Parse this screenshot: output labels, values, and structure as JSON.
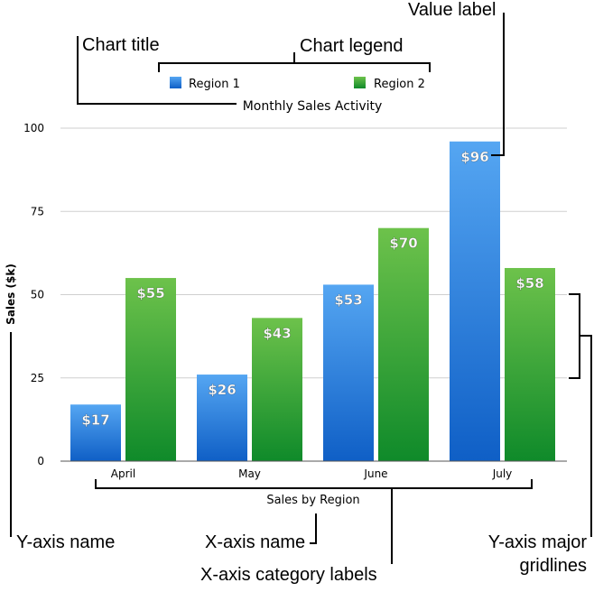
{
  "chart_data": {
    "type": "bar",
    "title": "Monthly Sales Activity",
    "xlabel": "Sales by Region",
    "ylabel": "Sales ($k)",
    "categories": [
      "April",
      "May",
      "June",
      "July"
    ],
    "series": [
      {
        "name": "Region 1",
        "values": [
          17,
          26,
          53,
          96
        ],
        "labels": [
          "$17",
          "$26",
          "$53",
          "$96"
        ]
      },
      {
        "name": "Region 2",
        "values": [
          55,
          43,
          70,
          58
        ],
        "labels": [
          "$55",
          "$43",
          "$70",
          "$58"
        ]
      }
    ],
    "ylim": [
      0,
      100
    ],
    "yticks": [
      0,
      25,
      50,
      75,
      100
    ],
    "ytick_labels": [
      "0",
      "25",
      "50",
      "75",
      "100"
    ],
    "grid": true,
    "legend_position": "top"
  },
  "colors": {
    "region1_top": "#55a6f2",
    "region1_bottom": "#0f5fc6",
    "region2_top": "#6dc24b",
    "region2_bottom": "#0f8a2a",
    "gridline": "#cfcfcf"
  },
  "annotations": {
    "chart_title": "Chart title",
    "chart_legend": "Chart legend",
    "value_label": "Value label",
    "y_axis_name": "Y-axis name",
    "x_axis_name": "X-axis name",
    "x_axis_category_labels": "X-axis category labels",
    "y_axis_major_gridlines_line1": "Y-axis major",
    "y_axis_major_gridlines_line2": "gridlines"
  }
}
